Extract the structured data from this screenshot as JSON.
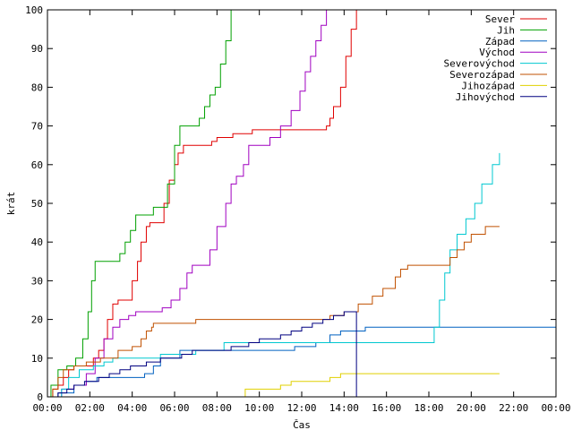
{
  "chart_data": {
    "type": "line",
    "xlabel": "Čas",
    "ylabel": "krát",
    "xlim": [
      0,
      1440
    ],
    "ylim": [
      0,
      100
    ],
    "grid": false,
    "legend_position": "top-right",
    "x_ticks": [
      {
        "value": 0,
        "label": "00:00"
      },
      {
        "value": 120,
        "label": "02:00"
      },
      {
        "value": 240,
        "label": "04:00"
      },
      {
        "value": 360,
        "label": "06:00"
      },
      {
        "value": 480,
        "label": "08:00"
      },
      {
        "value": 600,
        "label": "10:00"
      },
      {
        "value": 720,
        "label": "12:00"
      },
      {
        "value": 840,
        "label": "14:00"
      },
      {
        "value": 960,
        "label": "16:00"
      },
      {
        "value": 1080,
        "label": "18:00"
      },
      {
        "value": 1200,
        "label": "20:00"
      },
      {
        "value": 1320,
        "label": "22:00"
      },
      {
        "value": 1440,
        "label": "00:00"
      }
    ],
    "y_ticks": [
      {
        "value": 0,
        "label": "0"
      },
      {
        "value": 10,
        "label": "10"
      },
      {
        "value": 20,
        "label": "20"
      },
      {
        "value": 30,
        "label": "30"
      },
      {
        "value": 40,
        "label": "40"
      },
      {
        "value": 50,
        "label": "50"
      },
      {
        "value": 60,
        "label": "60"
      },
      {
        "value": 70,
        "label": "70"
      },
      {
        "value": 80,
        "label": "80"
      },
      {
        "value": 90,
        "label": "90"
      },
      {
        "value": 100,
        "label": "100"
      }
    ],
    "series": [
      {
        "name": "Sever",
        "color": "#e00000",
        "points": [
          [
            0,
            0
          ],
          [
            15,
            2
          ],
          [
            30,
            3
          ],
          [
            45,
            5
          ],
          [
            60,
            7
          ],
          [
            75,
            8
          ],
          [
            100,
            8
          ],
          [
            130,
            10
          ],
          [
            145,
            12
          ],
          [
            160,
            15
          ],
          [
            170,
            20
          ],
          [
            185,
            24
          ],
          [
            200,
            25
          ],
          [
            225,
            25
          ],
          [
            240,
            30
          ],
          [
            255,
            35
          ],
          [
            265,
            40
          ],
          [
            280,
            44
          ],
          [
            290,
            45
          ],
          [
            320,
            45
          ],
          [
            330,
            50
          ],
          [
            345,
            56
          ],
          [
            360,
            60
          ],
          [
            370,
            63
          ],
          [
            385,
            65
          ],
          [
            420,
            65
          ],
          [
            440,
            65
          ],
          [
            465,
            66
          ],
          [
            480,
            67
          ],
          [
            505,
            67
          ],
          [
            525,
            68
          ],
          [
            550,
            68
          ],
          [
            580,
            69
          ],
          [
            620,
            69
          ],
          [
            660,
            69
          ],
          [
            720,
            69
          ],
          [
            760,
            69
          ],
          [
            790,
            70
          ],
          [
            800,
            72
          ],
          [
            810,
            75
          ],
          [
            830,
            80
          ],
          [
            845,
            88
          ],
          [
            860,
            95
          ],
          [
            875,
            100
          ]
        ]
      },
      {
        "name": "Jih",
        "color": "#00a000",
        "points": [
          [
            0,
            0
          ],
          [
            10,
            3
          ],
          [
            30,
            7
          ],
          [
            40,
            7
          ],
          [
            55,
            8
          ],
          [
            80,
            10
          ],
          [
            100,
            15
          ],
          [
            115,
            22
          ],
          [
            125,
            30
          ],
          [
            135,
            35
          ],
          [
            180,
            35
          ],
          [
            205,
            37
          ],
          [
            220,
            40
          ],
          [
            235,
            43
          ],
          [
            250,
            47
          ],
          [
            290,
            47
          ],
          [
            300,
            49
          ],
          [
            330,
            49
          ],
          [
            340,
            55
          ],
          [
            360,
            65
          ],
          [
            375,
            70
          ],
          [
            420,
            70
          ],
          [
            430,
            72
          ],
          [
            445,
            75
          ],
          [
            460,
            78
          ],
          [
            475,
            80
          ],
          [
            490,
            86
          ],
          [
            505,
            92
          ],
          [
            520,
            100
          ]
        ]
      },
      {
        "name": "Západ",
        "color": "#0060c0",
        "points": [
          [
            0,
            0
          ],
          [
            30,
            1
          ],
          [
            75,
            3
          ],
          [
            110,
            4
          ],
          [
            140,
            5
          ],
          [
            170,
            5
          ],
          [
            240,
            5
          ],
          [
            275,
            6
          ],
          [
            300,
            8
          ],
          [
            320,
            10
          ],
          [
            350,
            10
          ],
          [
            375,
            12
          ],
          [
            410,
            12
          ],
          [
            470,
            12
          ],
          [
            540,
            12
          ],
          [
            600,
            12
          ],
          [
            650,
            12
          ],
          [
            700,
            13
          ],
          [
            760,
            14
          ],
          [
            800,
            16
          ],
          [
            830,
            17
          ],
          [
            900,
            18
          ],
          [
            1000,
            18
          ],
          [
            1100,
            18
          ],
          [
            1200,
            18
          ],
          [
            1440,
            18
          ]
        ]
      },
      {
        "name": "Východ",
        "color": "#a000c0",
        "points": [
          [
            0,
            0
          ],
          [
            40,
            2
          ],
          [
            75,
            3
          ],
          [
            110,
            6
          ],
          [
            135,
            10
          ],
          [
            160,
            15
          ],
          [
            185,
            18
          ],
          [
            205,
            20
          ],
          [
            230,
            21
          ],
          [
            250,
            22
          ],
          [
            290,
            22
          ],
          [
            325,
            23
          ],
          [
            350,
            25
          ],
          [
            375,
            28
          ],
          [
            395,
            32
          ],
          [
            410,
            34
          ],
          [
            440,
            34
          ],
          [
            460,
            38
          ],
          [
            480,
            44
          ],
          [
            505,
            50
          ],
          [
            520,
            55
          ],
          [
            535,
            57
          ],
          [
            555,
            60
          ],
          [
            570,
            65
          ],
          [
            605,
            65
          ],
          [
            630,
            67
          ],
          [
            660,
            70
          ],
          [
            690,
            74
          ],
          [
            715,
            79
          ],
          [
            730,
            84
          ],
          [
            745,
            88
          ],
          [
            760,
            92
          ],
          [
            775,
            96
          ],
          [
            790,
            100
          ]
        ]
      },
      {
        "name": "Severovýchod",
        "color": "#00c8d0",
        "points": [
          [
            0,
            0
          ],
          [
            40,
            2
          ],
          [
            60,
            5
          ],
          [
            90,
            7
          ],
          [
            130,
            8
          ],
          [
            160,
            9
          ],
          [
            185,
            10
          ],
          [
            230,
            10
          ],
          [
            280,
            10
          ],
          [
            320,
            11
          ],
          [
            420,
            12
          ],
          [
            500,
            14
          ],
          [
            600,
            14
          ],
          [
            700,
            14
          ],
          [
            820,
            14
          ],
          [
            900,
            14
          ],
          [
            980,
            14
          ],
          [
            1030,
            14
          ],
          [
            1060,
            14
          ],
          [
            1095,
            18
          ],
          [
            1110,
            25
          ],
          [
            1125,
            32
          ],
          [
            1140,
            38
          ],
          [
            1160,
            42
          ],
          [
            1185,
            46
          ],
          [
            1210,
            50
          ],
          [
            1230,
            55
          ],
          [
            1260,
            60
          ],
          [
            1280,
            63
          ]
        ]
      },
      {
        "name": "Severozápad",
        "color": "#c05000",
        "points": [
          [
            0,
            0
          ],
          [
            15,
            2
          ],
          [
            30,
            5
          ],
          [
            45,
            7
          ],
          [
            75,
            8
          ],
          [
            110,
            9
          ],
          [
            150,
            10
          ],
          [
            200,
            12
          ],
          [
            240,
            13
          ],
          [
            265,
            15
          ],
          [
            280,
            17
          ],
          [
            295,
            18
          ],
          [
            300,
            19
          ],
          [
            325,
            19
          ],
          [
            365,
            19
          ],
          [
            420,
            20
          ],
          [
            470,
            20
          ],
          [
            560,
            20
          ],
          [
            640,
            20
          ],
          [
            760,
            20
          ],
          [
            800,
            21
          ],
          [
            840,
            22
          ],
          [
            880,
            24
          ],
          [
            920,
            26
          ],
          [
            950,
            28
          ],
          [
            985,
            31
          ],
          [
            1000,
            33
          ],
          [
            1020,
            34
          ],
          [
            1050,
            34
          ],
          [
            1100,
            34
          ],
          [
            1140,
            36
          ],
          [
            1160,
            38
          ],
          [
            1180,
            40
          ],
          [
            1200,
            42
          ],
          [
            1240,
            44
          ],
          [
            1280,
            44
          ]
        ]
      },
      {
        "name": "Jihozápad",
        "color": "#e0d000",
        "points": [
          [
            555,
            0
          ],
          [
            560,
            2
          ],
          [
            600,
            2
          ],
          [
            630,
            2
          ],
          [
            660,
            3
          ],
          [
            690,
            4
          ],
          [
            720,
            4
          ],
          [
            760,
            4
          ],
          [
            800,
            5
          ],
          [
            830,
            6
          ],
          [
            880,
            6
          ],
          [
            960,
            6
          ],
          [
            1060,
            6
          ],
          [
            1200,
            6
          ],
          [
            1280,
            6
          ]
        ]
      },
      {
        "name": "Jihovýchod",
        "color": "#000080",
        "points": [
          [
            0,
            0
          ],
          [
            30,
            1
          ],
          [
            55,
            2
          ],
          [
            75,
            3
          ],
          [
            105,
            4
          ],
          [
            145,
            5
          ],
          [
            175,
            6
          ],
          [
            205,
            7
          ],
          [
            235,
            8
          ],
          [
            280,
            9
          ],
          [
            320,
            10
          ],
          [
            350,
            10
          ],
          [
            380,
            11
          ],
          [
            410,
            12
          ],
          [
            440,
            12
          ],
          [
            470,
            12
          ],
          [
            520,
            13
          ],
          [
            570,
            14
          ],
          [
            600,
            15
          ],
          [
            660,
            16
          ],
          [
            690,
            17
          ],
          [
            720,
            18
          ],
          [
            750,
            19
          ],
          [
            780,
            20
          ],
          [
            810,
            21
          ],
          [
            840,
            22
          ],
          [
            860,
            22
          ],
          [
            875,
            0
          ]
        ]
      }
    ]
  }
}
